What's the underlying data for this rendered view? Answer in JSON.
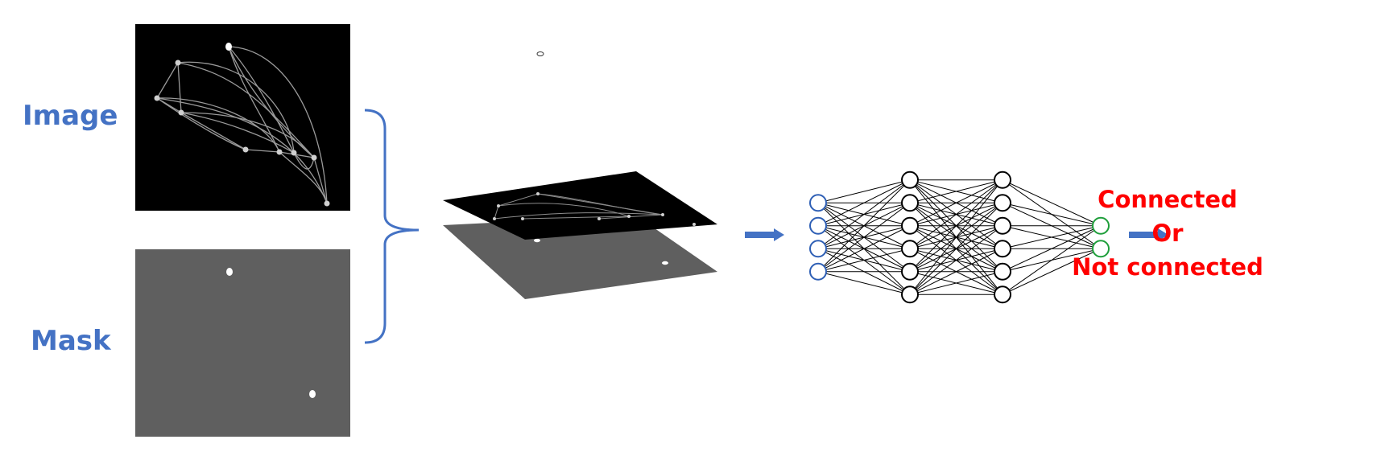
{
  "labels": {
    "image": "Image",
    "mask": "Mask"
  },
  "result": {
    "line1": "Connected",
    "line2": "Or",
    "line3": "Not connected"
  },
  "network": {
    "layers": [
      4,
      6,
      6,
      2
    ],
    "input_color": "#2e5fb5",
    "hidden_color": "#000000",
    "output_color": "#1e9e3a"
  },
  "colors": {
    "label": "#4472c4",
    "result": "#ff0000",
    "image_bg": "#000000",
    "mask_bg": "#5f5f5f",
    "arrow": "#4472c4"
  }
}
